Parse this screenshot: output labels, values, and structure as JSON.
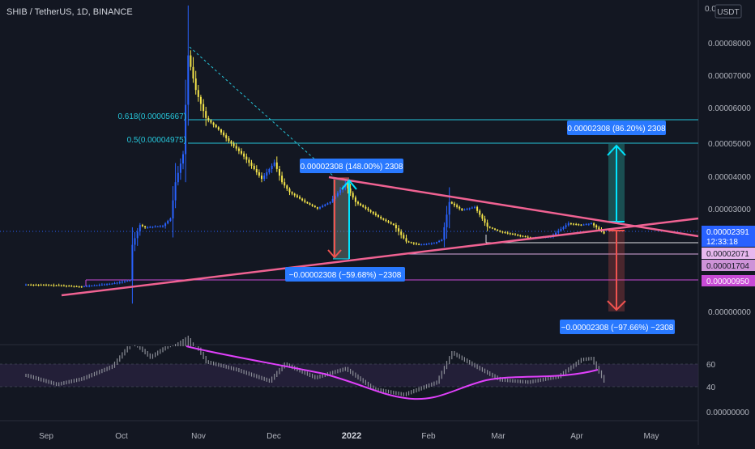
{
  "colors": {
    "background": "#131722",
    "candle_up": "#2962ff",
    "candle_down": "#f5e54a",
    "trendline": "#f06292",
    "fib_line": "#26c6da",
    "box_up": "#26a69a",
    "box_down": "#ef5350",
    "label_blue": "#2979ff",
    "rsi_ma": "#e040fb",
    "horizontal_magenta": "#c84bd6"
  },
  "header": {
    "symbol_title": "SHIB / TetherUS, 1D, BINANCE",
    "currency_badge": "USDT"
  },
  "price_axis": {
    "top_label": "0.0",
    "ticks": [
      "0.00008000",
      "0.00007000",
      "0.00006000",
      "0.00005000",
      "0.00004000",
      "0.00003000",
      "0.00000000"
    ],
    "tags": {
      "last_price": "0.00002391",
      "countdown": "12:33:18",
      "level_a": "0.00002071",
      "level_b": "0.00001704",
      "level_c": "0.00000950"
    }
  },
  "rsi_axis": {
    "ticks": [
      "60",
      "40"
    ],
    "bottom_label": "0.00000000"
  },
  "time_axis": {
    "labels": [
      "Sep",
      "Oct",
      "Nov",
      "Dec",
      "2022",
      "Feb",
      "Mar",
      "Apr",
      "May"
    ]
  },
  "annotations": {
    "fib_0618": "0.618(0.00005667)",
    "fib_05": "0.5(0.00004975)",
    "measure_up_left": "0.00002308 (148.00%) 2308",
    "measure_down_left": "−0.00002308 (−59.68%) −2308",
    "measure_up_right": "0.00002308 (86.20%) 2308",
    "measure_down_right": "−0.00002308 (−97.66%) −2308"
  },
  "chart_data": [
    {
      "type": "candlestick",
      "title": "SHIB / TetherUS, 1D, BINANCE",
      "unit": "USDT",
      "x_ticks": [
        "Sep",
        "Oct",
        "Nov",
        "Dec",
        "2022",
        "Feb",
        "Mar",
        "Apr",
        "May"
      ],
      "y_ticks": [
        8e-05,
        7e-05,
        6e-05,
        5e-05,
        4e-05,
        3e-05,
        0.0
      ],
      "close_path": [
        {
          "x": "Aug 24",
          "y": 8.4e-06
        },
        {
          "x": "Sep 5",
          "y": 8.2e-06
        },
        {
          "x": "Sep 15",
          "y": 7.8e-06
        },
        {
          "x": "Sep 27",
          "y": 8.7e-06
        },
        {
          "x": "Oct 4",
          "y": 9.7e-06
        },
        {
          "x": "Oct 5",
          "y": 2.05e-05
        },
        {
          "x": "Oct 8",
          "y": 2.65e-05
        },
        {
          "x": "Oct 10",
          "y": 2.58e-05
        },
        {
          "x": "Oct 17",
          "y": 2.62e-05
        },
        {
          "x": "Oct 20",
          "y": 2.85e-05
        },
        {
          "x": "Oct 22",
          "y": 3.95e-05
        },
        {
          "x": "Oct 25",
          "y": 4.8e-05
        },
        {
          "x": "Oct 27",
          "y": 7.8e-05
        },
        {
          "x": "Oct 28",
          "y": 7.45e-05
        },
        {
          "x": "Oct 30",
          "y": 6.75e-05
        },
        {
          "x": "Nov 3",
          "y": 5.9e-05
        },
        {
          "x": "Nov 8",
          "y": 5.55e-05
        },
        {
          "x": "Nov 12",
          "y": 5.2e-05
        },
        {
          "x": "Nov 17",
          "y": 4.82e-05
        },
        {
          "x": "Nov 21",
          "y": 4.45e-05
        },
        {
          "x": "Nov 25",
          "y": 4.05e-05
        },
        {
          "x": "Nov 30",
          "y": 4.55e-05
        },
        {
          "x": "Dec 3",
          "y": 3.95e-05
        },
        {
          "x": "Dec 6",
          "y": 3.65e-05
        },
        {
          "x": "Dec 12",
          "y": 3.35e-05
        },
        {
          "x": "Dec 17",
          "y": 3.15e-05
        },
        {
          "x": "Dec 22",
          "y": 3.35e-05
        },
        {
          "x": "Dec 28",
          "y": 3.9e-05
        },
        {
          "x": "Jan 1",
          "y": 3.35e-05
        },
        {
          "x": "Jan 7",
          "y": 3.05e-05
        },
        {
          "x": "Jan 11",
          "y": 2.85e-05
        },
        {
          "x": "Jan 16",
          "y": 2.65e-05
        },
        {
          "x": "Jan 21",
          "y": 2.15e-05
        },
        {
          "x": "Jan 26",
          "y": 2.05e-05
        },
        {
          "x": "Feb 1",
          "y": 2.1e-05
        },
        {
          "x": "Feb 4",
          "y": 2.2e-05
        },
        {
          "x": "Feb 7",
          "y": 3.35e-05
        },
        {
          "x": "Feb 12",
          "y": 3.1e-05
        },
        {
          "x": "Feb 17",
          "y": 3.2e-05
        },
        {
          "x": "Feb 22",
          "y": 2.6e-05
        },
        {
          "x": "Feb 27",
          "y": 2.45e-05
        },
        {
          "x": "Mar 5",
          "y": 2.35e-05
        },
        {
          "x": "Mar 12",
          "y": 2.25e-05
        },
        {
          "x": "Mar 19",
          "y": 2.3e-05
        },
        {
          "x": "Mar 26",
          "y": 2.7e-05
        },
        {
          "x": "Mar 31",
          "y": 2.65e-05
        },
        {
          "x": "Apr 4",
          "y": 2.7e-05
        },
        {
          "x": "Apr 9",
          "y": 2.39e-05
        }
      ],
      "fib_levels": [
        {
          "label": "0.618(0.00005667)",
          "price": 5.667e-05
        },
        {
          "label": "0.5(0.00004975)",
          "price": 4.975e-05
        }
      ],
      "horizontal_levels": [
        9.5e-06,
        1.704e-05,
        2.071e-05
      ],
      "last_price": 2.391e-05
    },
    {
      "type": "line",
      "title": "RSI",
      "y_ticks": [
        60,
        40
      ],
      "band": [
        40,
        60
      ],
      "series": [
        {
          "name": "",
          "points": [
            {
              "x": "Aug 24",
              "y": 50
            },
            {
              "x": "Sep 5",
              "y": 42
            },
            {
              "x": "Sep 15",
              "y": 47
            },
            {
              "x": "Sep 27",
              "y": 58
            },
            {
              "x": "Oct 5",
              "y": 80
            },
            {
              "x": "Oct 12",
              "y": 66
            },
            {
              "x": "Oct 27",
              "y": 88
            },
            {
              "x": "Nov 3",
              "y": 62
            },
            {
              "x": "Nov 15",
              "y": 55
            },
            {
              "x": "Nov 28",
              "y": 45
            },
            {
              "x": "Dec 4",
              "y": 60
            },
            {
              "x": "Dec 16",
              "y": 48
            },
            {
              "x": "Dec 28",
              "y": 56
            },
            {
              "x": "Jan 8",
              "y": 38
            },
            {
              "x": "Jan 20",
              "y": 33
            },
            {
              "x": "Feb 2",
              "y": 44
            },
            {
              "x": "Feb 8",
              "y": 70
            },
            {
              "x": "Feb 18",
              "y": 57
            },
            {
              "x": "Feb 27",
              "y": 46
            },
            {
              "x": "Mar 10",
              "y": 44
            },
            {
              "x": "Mar 22",
              "y": 49
            },
            {
              "x": "Mar 31",
              "y": 64
            },
            {
              "x": "Apr 4",
              "y": 65
            },
            {
              "x": "Apr 9",
              "y": 45
            }
          ]
        },
        {
          "name": "",
          "points": [
            {
              "x": "Nov 10",
              "y": 82
            },
            {
              "x": "Dec 12",
              "y": 60
            },
            {
              "x": "Jan 12",
              "y": 43
            },
            {
              "x": "Jan 28",
              "y": 37
            },
            {
              "x": "Feb 14",
              "y": 38
            },
            {
              "x": "Mar 5",
              "y": 46
            },
            {
              "x": "Mar 22",
              "y": 49
            },
            {
              "x": "Apr 6",
              "y": 55
            }
          ]
        }
      ]
    }
  ]
}
